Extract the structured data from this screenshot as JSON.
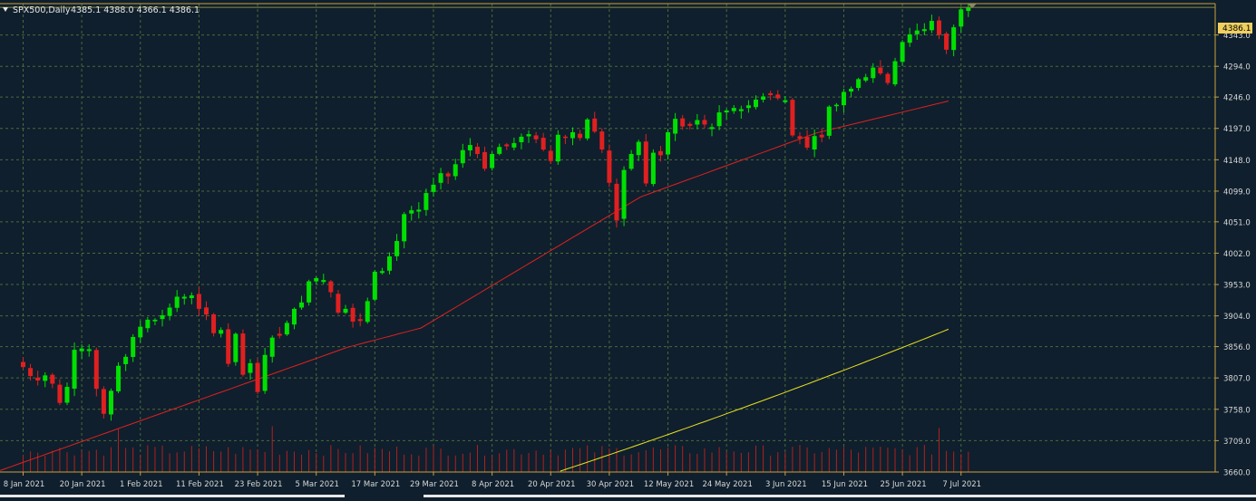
{
  "header": {
    "symbol": "SPX500,Daily",
    "ohlc": "4385.1 4388.0 4366.1 4386.1"
  },
  "colors": {
    "background": "#0f1f2d",
    "grid": "#4a6a3a",
    "frame": "#c8a040",
    "axis_text": "#d8d8d8",
    "bull": "#00e000",
    "bear": "#e02020",
    "ma_fast": "#e02020",
    "ma_slow": "#e8e020",
    "volume": "#b02020",
    "price_label_bg": "#f0d060"
  },
  "icons": {
    "menu": "triangle-down-icon",
    "marker": "triangle-down-icon"
  },
  "chart_data": {
    "type": "candlestick",
    "title": "SPX500,Daily",
    "ohlc_readout": "4385.1 4388.0 4366.1 4386.1",
    "current_price_label": "4386.1",
    "ylim": [
      3660,
      4392
    ],
    "y_ticks": [
      "4343.0",
      "4294.0",
      "4246.0",
      "4197.0",
      "4148.0",
      "4099.0",
      "4051.0",
      "4002.0",
      "3953.0",
      "3904.0",
      "3856.0",
      "3807.0",
      "3758.0",
      "3709.0",
      "3660.0"
    ],
    "x_ticks": [
      "8 Jan 2021",
      "20 Jan 2021",
      "1 Feb 2021",
      "11 Feb 2021",
      "23 Feb 2021",
      "5 Mar 2021",
      "17 Mar 2021",
      "29 Mar 2021",
      "8 Apr 2021",
      "20 Apr 2021",
      "30 Apr 2021",
      "12 May 2021",
      "24 May 2021",
      "3 Jun 2021",
      "15 Jun 2021",
      "25 Jun 2021",
      "7 Jul 2021"
    ],
    "x_tick_bar_index": [
      0,
      8,
      16,
      24,
      32,
      40,
      48,
      56,
      64,
      72,
      80,
      88,
      96,
      104,
      112,
      120,
      128
    ],
    "grid": true,
    "closes": [
      3824,
      3810,
      3803,
      3811,
      3798,
      3768,
      3793,
      3851,
      3853,
      3852,
      3790,
      3751,
      3787,
      3826,
      3840,
      3871,
      3887,
      3898,
      3898,
      3905,
      3917,
      3934,
      3934,
      3936,
      3915,
      3906,
      3877,
      3882,
      3829,
      3876,
      3812,
      3830,
      3785,
      3843,
      3870,
      3873,
      3893,
      3915,
      3925,
      3958,
      3963,
      3960,
      3941,
      3909,
      3915,
      3895,
      3896,
      3927,
      3973,
      3974,
      3997,
      4021,
      4063,
      4069,
      4070,
      4096,
      4109,
      4127,
      4122,
      4141,
      4163,
      4171,
      4157,
      4134,
      4157,
      4168,
      4169,
      4174,
      4184,
      4188,
      4180,
      4164,
      4146,
      4187,
      4182,
      4191,
      4182,
      4211,
      4192,
      4164,
      4112,
      4053,
      4132,
      4157,
      4176,
      4111,
      4159,
      4155,
      4191,
      4212,
      4200,
      4201,
      4210,
      4203,
      4199,
      4222,
      4225,
      4229,
      4227,
      4233,
      4242,
      4247,
      4249,
      4244,
      4241,
      4186,
      4181,
      4167,
      4185,
      4183,
      4231,
      4234,
      4254,
      4259,
      4274,
      4277,
      4292,
      4283,
      4268,
      4302,
      4332,
      4344,
      4350,
      4352,
      4365,
      4343,
      4320,
      4355,
      4383,
      4386
    ],
    "ma_fast_label": "",
    "ma_slow_label": ""
  }
}
